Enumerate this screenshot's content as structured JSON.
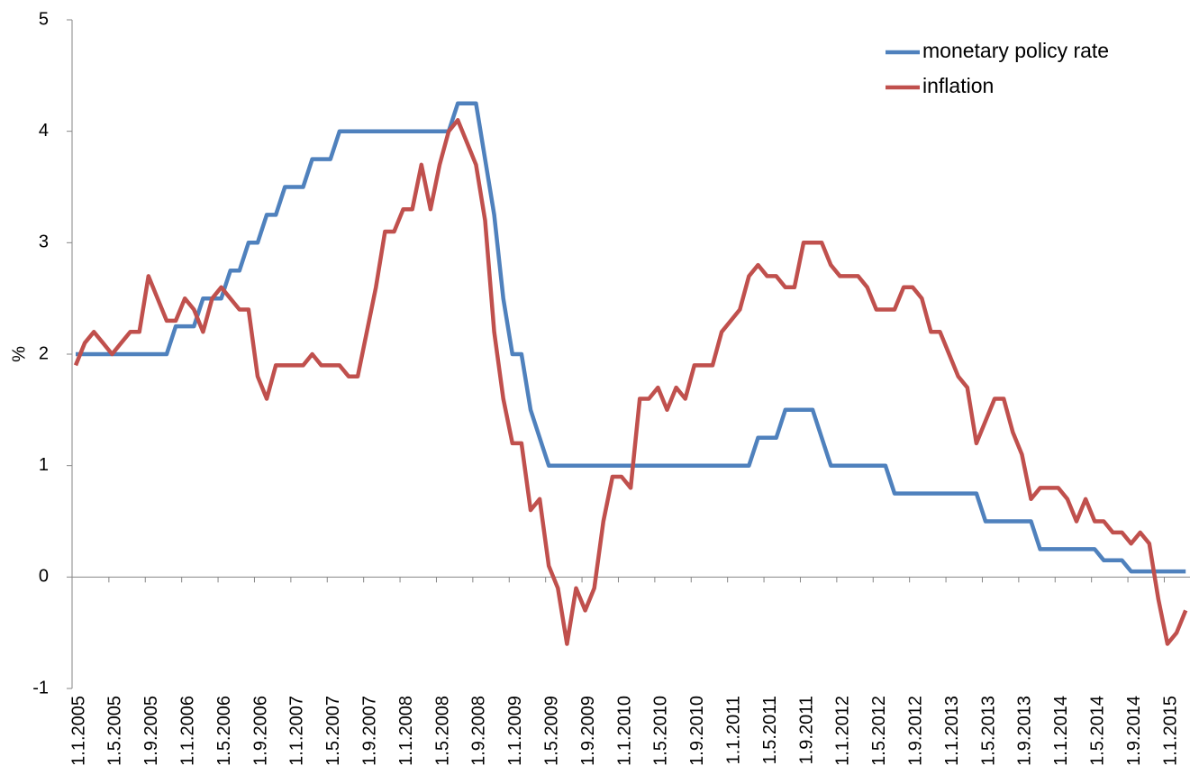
{
  "chart_data": {
    "type": "line",
    "y_label": "%",
    "categories": [
      "1.1.2005",
      null,
      null,
      null,
      "1.5.2005",
      null,
      null,
      null,
      "1.9.2005",
      null,
      null,
      null,
      "1.1.2006",
      null,
      null,
      null,
      "1.5.2006",
      null,
      null,
      null,
      "1.9.2006",
      null,
      null,
      null,
      "1.1.2007",
      null,
      null,
      null,
      "1.5.2007",
      null,
      null,
      null,
      "1.9.2007",
      null,
      null,
      null,
      "1.1.2008",
      null,
      null,
      null,
      "1.5.2008",
      null,
      null,
      null,
      "1.9.2008",
      null,
      null,
      null,
      "1.1.2009",
      null,
      null,
      null,
      "1.5.2009",
      null,
      null,
      null,
      "1.9.2009",
      null,
      null,
      null,
      "1.1.2010",
      null,
      null,
      null,
      "1.5.2010",
      null,
      null,
      null,
      "1.9.2010",
      null,
      null,
      null,
      "1.1.2011",
      null,
      null,
      null,
      "1.5.2011",
      null,
      null,
      null,
      "1.9.2011",
      null,
      null,
      null,
      "1.1.2012",
      null,
      null,
      null,
      "1.5.2012",
      null,
      null,
      null,
      "1.9.2012",
      null,
      null,
      null,
      "1.1.2013",
      null,
      null,
      null,
      "1.5.2013",
      null,
      null,
      null,
      "1.9.2013",
      null,
      null,
      null,
      "1.1.2014",
      null,
      null,
      null,
      "1.5.2014",
      null,
      null,
      null,
      "1.9.2014",
      null,
      null,
      null,
      "1.1.2015",
      null,
      null
    ],
    "series": [
      {
        "name": "monetary policy rate",
        "color": "#4f81bd",
        "values": [
          2,
          2,
          2,
          2,
          2,
          2,
          2,
          2,
          2,
          2,
          2,
          2.25,
          2.25,
          2.25,
          2.5,
          2.5,
          2.5,
          2.75,
          2.75,
          3,
          3,
          3.25,
          3.25,
          3.5,
          3.5,
          3.5,
          3.75,
          3.75,
          3.75,
          4,
          4,
          4,
          4,
          4,
          4,
          4,
          4,
          4,
          4,
          4,
          4,
          4,
          4.25,
          4.25,
          4.25,
          3.75,
          3.25,
          2.5,
          2,
          2,
          1.5,
          1.25,
          1,
          1,
          1,
          1,
          1,
          1,
          1,
          1,
          1,
          1,
          1,
          1,
          1,
          1,
          1,
          1,
          1,
          1,
          1,
          1,
          1,
          1,
          1,
          1.25,
          1.25,
          1.25,
          1.5,
          1.5,
          1.5,
          1.5,
          1.25,
          1,
          1,
          1,
          1,
          1,
          1,
          1,
          0.75,
          0.75,
          0.75,
          0.75,
          0.75,
          0.75,
          0.75,
          0.75,
          0.75,
          0.75,
          0.5,
          0.5,
          0.5,
          0.5,
          0.5,
          0.5,
          0.25,
          0.25,
          0.25,
          0.25,
          0.25,
          0.25,
          0.25,
          0.15,
          0.15,
          0.15,
          0.05,
          0.05,
          0.05,
          0.05,
          0.05,
          0.05,
          0.05
        ]
      },
      {
        "name": "inflation",
        "color": "#c0504d",
        "values": [
          1.9,
          2.1,
          2.2,
          2.1,
          2.0,
          2.1,
          2.2,
          2.2,
          2.7,
          2.5,
          2.3,
          2.3,
          2.5,
          2.4,
          2.2,
          2.5,
          2.6,
          2.5,
          2.4,
          2.4,
          1.8,
          1.6,
          1.9,
          1.9,
          1.9,
          1.9,
          2.0,
          1.9,
          1.9,
          1.9,
          1.8,
          1.8,
          2.2,
          2.6,
          3.1,
          3.1,
          3.3,
          3.3,
          3.7,
          3.3,
          3.7,
          4.0,
          4.1,
          3.9,
          3.7,
          3.2,
          2.2,
          1.6,
          1.2,
          1.2,
          0.6,
          0.7,
          0.1,
          -0.1,
          -0.6,
          -0.1,
          -0.3,
          -0.1,
          0.5,
          0.9,
          0.9,
          0.8,
          1.6,
          1.6,
          1.7,
          1.5,
          1.7,
          1.6,
          1.9,
          1.9,
          1.9,
          2.2,
          2.3,
          2.4,
          2.7,
          2.8,
          2.7,
          2.7,
          2.6,
          2.6,
          3.0,
          3.0,
          3.0,
          2.8,
          2.7,
          2.7,
          2.7,
          2.6,
          2.4,
          2.4,
          2.4,
          2.6,
          2.6,
          2.5,
          2.2,
          2.2,
          2.0,
          1.8,
          1.7,
          1.2,
          1.4,
          1.6,
          1.6,
          1.3,
          1.1,
          0.7,
          0.8,
          0.8,
          0.8,
          0.7,
          0.5,
          0.7,
          0.5,
          0.5,
          0.4,
          0.4,
          0.3,
          0.4,
          0.3,
          -0.2,
          -0.6,
          -0.5,
          -0.3
        ]
      }
    ],
    "ylim": [
      -1,
      5
    ],
    "yticks": [
      -1,
      0,
      1,
      2,
      3,
      4,
      5
    ],
    "legend": "top-right"
  }
}
